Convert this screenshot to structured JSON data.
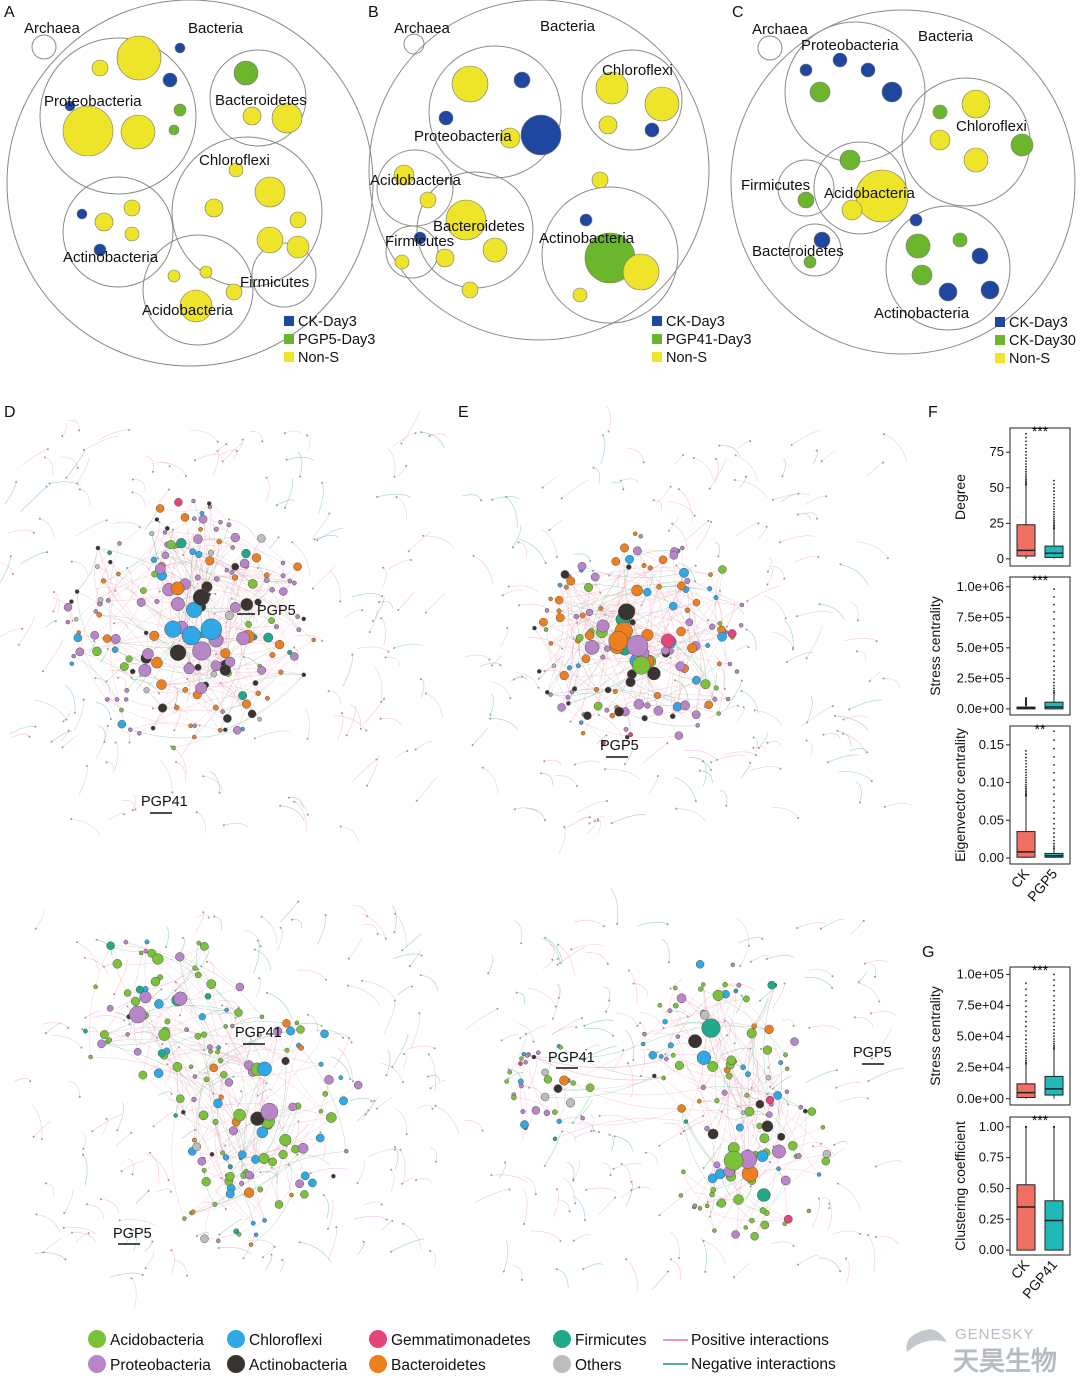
{
  "colors": {
    "blue": "#1f47a0",
    "green": "#6cb62e",
    "yellow": "#eee42a",
    "acidobacteria": "#7bc13a",
    "chloroflexi": "#2fa8e6",
    "gemmatimonadetes": "#e5457b",
    "firmicutes": "#20a88a",
    "proteobacteria": "#b785c8",
    "actinobacteria": "#3a3431",
    "bacteroidetes": "#ee7f1f",
    "others": "#bdbdbd",
    "positive": "#ee9bb0",
    "negative": "#4fb486",
    "box_ck": "#ef6f63",
    "box_treat": "#1fb9ba"
  },
  "panels": {
    "A": {
      "label": "A",
      "taxa": [
        "Archaea",
        "Bacteria",
        "Proteobacteria",
        "Bacteroidetes",
        "Chloroflexi",
        "Actinobacteria",
        "Firmicutes",
        "Acidobacteria"
      ],
      "legend": [
        "CK-Day3",
        "PGP5-Day3",
        "Non-S"
      ]
    },
    "B": {
      "label": "B",
      "taxa": [
        "Archaea",
        "Bacteria",
        "Chloroflexi",
        "Proteobacteria",
        "Acidobacteria",
        "Bacteroidetes",
        "Firmicutes",
        "Actinobacteria"
      ],
      "legend": [
        "CK-Day3",
        "PGP41-Day3",
        "Non-S"
      ]
    },
    "C": {
      "label": "C",
      "taxa": [
        "Archaea",
        "Proteobacteria",
        "Bacteria",
        "Chloroflexi",
        "Firmicutes",
        "Acidobacteria",
        "Bacteroidetes",
        "Actinobacteria"
      ],
      "legend": [
        "CK-Day3",
        "CK-Day30",
        "Non-S"
      ]
    },
    "D": {
      "label": "D",
      "top_labels": [
        "PGP5",
        "PGP41"
      ],
      "bottom_labels": [
        "PGP41",
        "PGP5"
      ]
    },
    "E": {
      "label": "E",
      "top_labels": [
        "PGP5"
      ],
      "bottom_labels": [
        "PGP41",
        "PGP5"
      ]
    },
    "F": {
      "label": "F"
    },
    "G": {
      "label": "G"
    }
  },
  "chart_data": [
    {
      "type": "box",
      "panel": "F",
      "ylabel": "Degree",
      "categories": [
        "CK",
        "PGP5"
      ],
      "significance": "***",
      "yticks": [
        "75",
        "50",
        "25",
        "0"
      ],
      "ylim": [
        -5,
        92
      ],
      "boxes": [
        {
          "q1": 2,
          "median": 6,
          "q3": 24,
          "wlow": 0,
          "whigh": 52,
          "outmax": 88
        },
        {
          "q1": 1,
          "median": 4,
          "q3": 9,
          "wlow": 0,
          "whigh": 21,
          "outmax": 55
        }
      ]
    },
    {
      "type": "box",
      "panel": "F",
      "ylabel": "Stress centrality",
      "categories": [
        "CK",
        "PGP5"
      ],
      "significance": "***",
      "yticks": [
        "1.0e+06",
        "7.5e+05",
        "5.0e+05",
        "2.5e+05",
        "0.0e+00"
      ],
      "ylim": [
        -50000,
        1080000
      ],
      "boxes": [
        {
          "q1": 0,
          "median": 5000,
          "q3": 15000,
          "wlow": 0,
          "whigh": 30000,
          "outmax": 90000
        },
        {
          "q1": 0,
          "median": 15000,
          "q3": 55000,
          "wlow": 0,
          "whigh": 130000,
          "outmax": 980000
        }
      ]
    },
    {
      "type": "box",
      "panel": "F",
      "ylabel": "Eigenvector centrality",
      "categories": [
        "CK",
        "PGP5"
      ],
      "significance": "**",
      "yticks": [
        "0.15",
        "0.10",
        "0.05",
        "0.00"
      ],
      "ylim": [
        -0.008,
        0.175
      ],
      "boxes": [
        {
          "q1": 0.001,
          "median": 0.008,
          "q3": 0.035,
          "wlow": 0,
          "whigh": 0.082,
          "outmax": 0.142
        },
        {
          "q1": 0.001,
          "median": 0.003,
          "q3": 0.006,
          "wlow": 0,
          "whigh": 0.012,
          "outmax": 0.168
        }
      ]
    },
    {
      "type": "box",
      "panel": "G",
      "ylabel": "Stress centrality",
      "categories": [
        "CK",
        "PGP41"
      ],
      "significance": "***",
      "yticks": [
        "1.0e+05",
        "7.5e+04",
        "5.0e+04",
        "2.5e+04",
        "0.0e+00"
      ],
      "ylim": [
        -5000,
        106000
      ],
      "boxes": [
        {
          "q1": 1000,
          "median": 5000,
          "q3": 12000,
          "wlow": 0,
          "whigh": 28000,
          "outmax": 93000
        },
        {
          "q1": 3000,
          "median": 8000,
          "q3": 18000,
          "wlow": 0,
          "whigh": 40000,
          "outmax": 100000
        }
      ]
    },
    {
      "type": "box",
      "panel": "G",
      "ylabel": "Clustering coefficient",
      "categories": [
        "CK",
        "PGP41"
      ],
      "significance": "***",
      "yticks": [
        "1.00",
        "0.75",
        "0.50",
        "0.25",
        "0.00"
      ],
      "ylim": [
        -0.04,
        1.08
      ],
      "boxes": [
        {
          "q1": 0.0,
          "median": 0.35,
          "q3": 0.53,
          "wlow": 0,
          "whigh": 1.0,
          "outmax": 1.0
        },
        {
          "q1": 0.0,
          "median": 0.24,
          "q3": 0.4,
          "wlow": 0,
          "whigh": 1.0,
          "outmax": 1.0
        }
      ]
    }
  ],
  "legend_bottom": {
    "items": [
      {
        "name": "Acidobacteria",
        "color": "#7bc13a"
      },
      {
        "name": "Proteobacteria",
        "color": "#b785c8"
      },
      {
        "name": "Chloroflexi",
        "color": "#2fa8e6"
      },
      {
        "name": "Actinobacteria",
        "color": "#3a3431"
      },
      {
        "name": "Gemmatimonadetes",
        "color": "#e5457b"
      },
      {
        "name": "Bacteroidetes",
        "color": "#ee7f1f"
      },
      {
        "name": "Firmicutes",
        "color": "#20a88a"
      },
      {
        "name": "Others",
        "color": "#bdbdbd"
      }
    ],
    "lines": [
      {
        "name": "Positive interactions",
        "color": "#ee9bb0"
      },
      {
        "name": "Negative interactions",
        "color": "#4fb486"
      }
    ]
  },
  "watermark": {
    "en": "GENESKY",
    "cn": "天昊生物"
  }
}
